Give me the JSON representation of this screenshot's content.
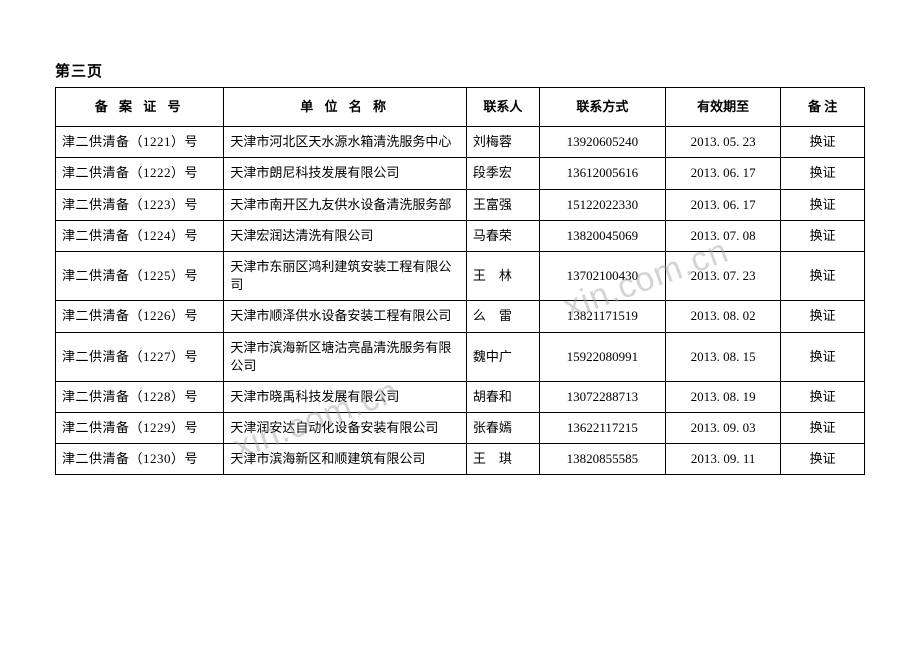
{
  "page_label": "第三页",
  "watermark_text": "xin.com.cn",
  "table": {
    "columns": [
      {
        "key": "cert",
        "label": "备 案 证 号",
        "class": "col-cert",
        "th_class": "th-cert"
      },
      {
        "key": "name",
        "label": "单 位 名 称",
        "class": "col-name",
        "th_class": "th-name"
      },
      {
        "key": "contact",
        "label": "联系人",
        "class": "col-contact",
        "th_class": ""
      },
      {
        "key": "phone",
        "label": "联系方式",
        "class": "col-phone",
        "th_class": ""
      },
      {
        "key": "date",
        "label": "有效期至",
        "class": "col-date",
        "th_class": ""
      },
      {
        "key": "note",
        "label": "备 注",
        "class": "col-note",
        "th_class": ""
      }
    ],
    "rows": [
      {
        "cert": "津二供清备（1221）号",
        "name": "天津市河北区天水源水箱清洗服务中心",
        "contact": "刘梅蓉",
        "phone": "13920605240",
        "date": "2013. 05. 23",
        "note": "换证"
      },
      {
        "cert": "津二供清备（1222）号",
        "name": "天津市朗尼科技发展有限公司",
        "contact": "段季宏",
        "phone": "13612005616",
        "date": "2013. 06. 17",
        "note": "换证"
      },
      {
        "cert": "津二供清备（1223）号",
        "name": "天津市南开区九友供水设备清洗服务部",
        "contact": "王富强",
        "phone": "15122022330",
        "date": "2013. 06. 17",
        "note": "换证"
      },
      {
        "cert": "津二供清备（1224）号",
        "name": "天津宏润达清洗有限公司",
        "contact": "马春荣",
        "phone": "13820045069",
        "date": "2013. 07. 08",
        "note": "换证"
      },
      {
        "cert": "津二供清备（1225）号",
        "name": "天津市东丽区鸿利建筑安装工程有限公司",
        "contact": "王　林",
        "phone": "13702100430",
        "date": "2013. 07. 23",
        "note": "换证"
      },
      {
        "cert": "津二供清备（1226）号",
        "name": "天津市顺泽供水设备安装工程有限公司",
        "contact": "么　雷",
        "phone": "13821171519",
        "date": "2013. 08. 02",
        "note": "换证"
      },
      {
        "cert": "津二供清备（1227）号",
        "name": "天津市滨海新区塘沽亮晶清洗服务有限公司",
        "contact": "魏中广",
        "phone": "15922080991",
        "date": "2013. 08. 15",
        "note": "换证"
      },
      {
        "cert": "津二供清备（1228）号",
        "name": "天津市晓禹科技发展有限公司",
        "contact": "胡春和",
        "phone": "13072288713",
        "date": "2013. 08. 19",
        "note": "换证"
      },
      {
        "cert": "津二供清备（1229）号",
        "name": "天津润安达自动化设备安装有限公司",
        "contact": "张春嫣",
        "phone": "13622117215",
        "date": "2013. 09. 03",
        "note": "换证"
      },
      {
        "cert": "津二供清备（1230）号",
        "name": "天津市滨海新区和顺建筑有限公司",
        "contact": "王　琪",
        "phone": "13820855585",
        "date": "2013. 09. 11",
        "note": "换证"
      }
    ]
  }
}
